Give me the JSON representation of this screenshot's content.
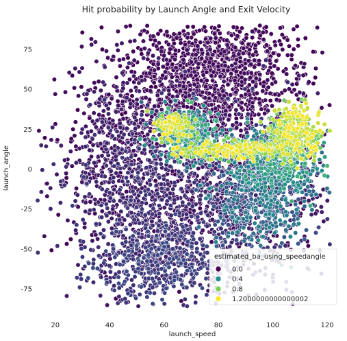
{
  "chart_data": {
    "type": "scatter",
    "title": "Hit probability by Launch Angle and Exit Velocity",
    "xlabel": "launch_speed",
    "ylabel": "launch_angle",
    "xlim": [
      9,
      124
    ],
    "ylim": [
      -93,
      93
    ],
    "xticks": [
      "20",
      "40",
      "60",
      "80",
      "100",
      "120"
    ],
    "yticks": [
      "75",
      "50",
      "25",
      "0",
      "-25",
      "-50",
      "-75"
    ],
    "grid": false,
    "legend": {
      "title": "estimated_ba_using_speedangle",
      "placement": "bottom-right",
      "entries": [
        {
          "label": "0.0",
          "color": "#440154"
        },
        {
          "label": "0.4",
          "color": "#21918c"
        },
        {
          "label": "0.8",
          "color": "#7ad151"
        },
        {
          "label": "1.2000000000000002",
          "color": "#fde725"
        }
      ]
    },
    "colormap": "viridis",
    "hue_range": [
      0,
      1.2
    ],
    "outlier_points": [
      {
        "x": 14,
        "y": 24,
        "v": 0.05
      },
      {
        "x": 16,
        "y": -42,
        "v": 0.05
      },
      {
        "x": 17,
        "y": -9,
        "v": 0.05
      },
      {
        "x": 17,
        "y": -17,
        "v": 0.05
      },
      {
        "x": 20,
        "y": 47,
        "v": 0.05
      },
      {
        "x": 103,
        "y": 78,
        "v": 0.0
      },
      {
        "x": 106,
        "y": 77,
        "v": 0.0
      },
      {
        "x": 112,
        "y": 82,
        "v": 0.0
      },
      {
        "x": 107,
        "y": -77,
        "v": 0.2
      },
      {
        "x": 28,
        "y": -68,
        "v": 0.2
      },
      {
        "x": 29,
        "y": -74,
        "v": 0.2
      },
      {
        "x": 30,
        "y": -55,
        "v": 0.2
      },
      {
        "x": 43,
        "y": -84,
        "v": 0.2
      },
      {
        "x": 121,
        "y": 24,
        "v": 1.1
      },
      {
        "x": 119,
        "y": 28,
        "v": 1.1
      },
      {
        "x": 120,
        "y": 2,
        "v": 0.8
      },
      {
        "x": 119,
        "y": -4,
        "v": 0.75
      }
    ],
    "clusters": [
      {
        "x": 80,
        "y": 68,
        "sx": 15,
        "sy": 14,
        "n": 650,
        "v": [
          0,
          0.05
        ]
      },
      {
        "x": 74,
        "y": 40,
        "sx": 17,
        "sy": 12,
        "n": 450,
        "v": [
          0,
          0.06
        ]
      },
      {
        "x": 60,
        "y": 52,
        "sx": 15,
        "sy": 22,
        "n": 250,
        "v": [
          0,
          0.08
        ]
      },
      {
        "x": 75,
        "y": -15,
        "sx": 22,
        "sy": 28,
        "n": 1400,
        "v": [
          0,
          0.2
        ]
      },
      {
        "x": 60,
        "y": -58,
        "sx": 12,
        "sy": 12,
        "n": 450,
        "v": [
          0.12,
          0.28
        ]
      },
      {
        "x": 48,
        "y": -30,
        "sx": 10,
        "sy": 28,
        "n": 350,
        "v": [
          0.05,
          0.22
        ]
      },
      {
        "x": 40,
        "y": 15,
        "sx": 9,
        "sy": 22,
        "n": 300,
        "v": [
          0,
          0.15
        ]
      },
      {
        "x": 95,
        "y": -15,
        "sx": 9,
        "sy": 18,
        "n": 500,
        "v": [
          0.25,
          0.55
        ]
      },
      {
        "x": 102,
        "y": 5,
        "sx": 8,
        "sy": 10,
        "n": 350,
        "v": [
          0.4,
          0.75
        ]
      },
      {
        "x": 68,
        "y": 22,
        "sx": 6,
        "sy": 8,
        "n": 300,
        "v": [
          0.4,
          0.8
        ]
      },
      {
        "x": 108,
        "y": 24,
        "sx": 5,
        "sy": 8,
        "n": 300,
        "v": [
          0.9,
          1.2
        ]
      },
      {
        "x": 85,
        "y": 12,
        "sx": 10,
        "sy": 3,
        "n": 250,
        "v": [
          0.9,
          1.2
        ]
      },
      {
        "x": 64,
        "y": 28,
        "sx": 3,
        "sy": 4,
        "n": 120,
        "v": [
          0.95,
          1.2
        ]
      }
    ]
  }
}
